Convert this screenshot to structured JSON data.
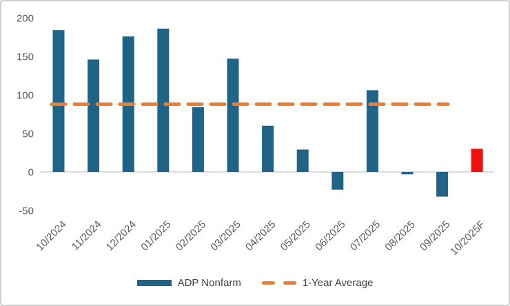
{
  "chart_data": {
    "type": "bar",
    "categories": [
      "10/2024",
      "11/2024",
      "12/2024",
      "01/2025",
      "02/2025",
      "03/2025",
      "04/2025",
      "05/2025",
      "06/2025",
      "07/2025",
      "08/2025",
      "09/2025",
      "10/2025F"
    ],
    "series": [
      {
        "name": "ADP Nonfarm",
        "values": [
          184,
          146,
          176,
          186,
          84,
          147,
          60,
          29,
          -23,
          106,
          -3,
          -32,
          30
        ]
      }
    ],
    "forecast_index": 12,
    "average_line": {
      "name": "1-Year Average",
      "value": 88,
      "style": "dashed"
    },
    "title": "",
    "xlabel": "",
    "ylabel": "",
    "y_ticks": [
      200,
      150,
      100,
      50,
      0,
      -50
    ],
    "ylim": [
      -50,
      200
    ],
    "grid": false,
    "legend_position": "bottom",
    "x_label_rotation_deg": 45
  },
  "colors": {
    "bar": "#1f6487",
    "forecast_bar": "#ee1111",
    "average_line": "#ed7d31",
    "tick_text": "#595959",
    "legend_text": "#404040",
    "axis_line": "#d6d6d6"
  },
  "legend": {
    "items": [
      {
        "label": "ADP Nonfarm",
        "swatch": "bar"
      },
      {
        "label": "1-Year Average",
        "swatch": "dash"
      }
    ]
  }
}
